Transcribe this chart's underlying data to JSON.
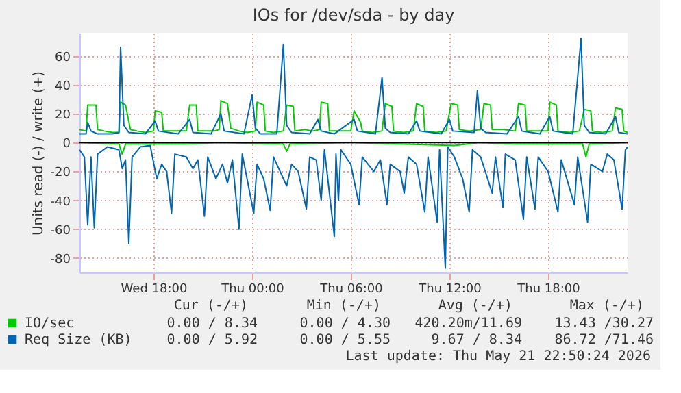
{
  "chart_data": {
    "type": "line",
    "title": "IOs for /dev/sda - by day",
    "ylabel": "Units read (-) / write (+)",
    "xlim": [
      "2026-05-20T13:30",
      "2026-05-21T22:50"
    ],
    "xticks": [
      {
        "value": "2026-05-20T18:00",
        "label": "Wed 18:00"
      },
      {
        "value": "2026-05-21T00:00",
        "label": "Thu 00:00"
      },
      {
        "value": "2026-05-21T06:00",
        "label": "Thu 06:00"
      },
      {
        "value": "2026-05-21T12:00",
        "label": "Thu 12:00"
      },
      {
        "value": "2026-05-21T18:00",
        "label": "Thu 18:00"
      }
    ],
    "ylim": [
      -90,
      76
    ],
    "yticks": [
      -80,
      -60,
      -40,
      -20,
      0,
      20,
      40,
      60
    ],
    "grid": true,
    "legend": "bottom left",
    "line_style": "solid",
    "marker": "none",
    "ref_lines": [
      {
        "axis": "y",
        "value": 0,
        "color": "#000000"
      }
    ],
    "annotations": [
      "Cur (-/+)",
      "Min (-/+)",
      "Avg (-/+)",
      "Max (-/+)",
      "0.00 / 8.34",
      "0.00 / 4.30",
      "420.20m/11.69",
      "13.43 /30.27",
      "0.00 / 5.92",
      "0.00 / 5.55",
      "9.67 / 8.34",
      "86.72 /71.46",
      "Last update: Thu May 21 22:50:24 2026"
    ],
    "series": [
      {
        "name": "IO/sec",
        "color": "#00cc00",
        "x": [
          "2026-05-20T13:30",
          "2026-05-20T13:54",
          "2026-05-20T14:00",
          "2026-05-20T14:30",
          "2026-05-20T14:36",
          "2026-05-20T15:00",
          "2026-05-20T15:30",
          "2026-05-20T15:54",
          "2026-05-20T16:00",
          "2026-05-20T16:18",
          "2026-05-20T16:36",
          "2026-05-20T17:00",
          "2026-05-20T17:30",
          "2026-05-20T18:00",
          "2026-05-20T18:06",
          "2026-05-20T18:30",
          "2026-05-20T18:36",
          "2026-05-20T19:00",
          "2026-05-20T19:30",
          "2026-05-20T20:00",
          "2026-05-20T20:12",
          "2026-05-20T20:36",
          "2026-05-20T20:42",
          "2026-05-20T21:12",
          "2026-05-20T21:42",
          "2026-05-20T22:00",
          "2026-05-20T22:06",
          "2026-05-20T22:30",
          "2026-05-20T22:42",
          "2026-05-20T23:12",
          "2026-05-20T23:42",
          "2026-05-21T00:12",
          "2026-05-21T00:18",
          "2026-05-21T00:42",
          "2026-05-21T00:48",
          "2026-05-21T01:18",
          "2026-05-21T01:54",
          "2026-05-21T02:06",
          "2026-05-21T02:30",
          "2026-05-21T02:36",
          "2026-05-21T03:12",
          "2026-05-21T03:42",
          "2026-05-21T04:06",
          "2026-05-21T04:12",
          "2026-05-21T04:36",
          "2026-05-21T04:42",
          "2026-05-21T05:30",
          "2026-05-21T06:00",
          "2026-05-21T06:12",
          "2026-05-21T06:36",
          "2026-05-21T06:42",
          "2026-05-21T07:18",
          "2026-05-21T07:54",
          "2026-05-21T08:06",
          "2026-05-21T08:30",
          "2026-05-21T08:36",
          "2026-05-21T09:12",
          "2026-05-21T09:48",
          "2026-05-21T10:00",
          "2026-05-21T10:24",
          "2026-05-21T10:30",
          "2026-05-21T11:12",
          "2026-05-21T11:48",
          "2026-05-21T12:06",
          "2026-05-21T12:30",
          "2026-05-21T12:36",
          "2026-05-21T13:12",
          "2026-05-21T13:54",
          "2026-05-21T14:06",
          "2026-05-21T14:30",
          "2026-05-21T14:36",
          "2026-05-21T15:18",
          "2026-05-21T16:00",
          "2026-05-21T16:12",
          "2026-05-21T16:36",
          "2026-05-21T16:42",
          "2026-05-21T17:18",
          "2026-05-21T18:00",
          "2026-05-21T18:06",
          "2026-05-21T18:30",
          "2026-05-21T18:36",
          "2026-05-21T19:18",
          "2026-05-21T19:54",
          "2026-05-21T20:12",
          "2026-05-21T20:36",
          "2026-05-21T20:42",
          "2026-05-21T21:18",
          "2026-05-21T21:54",
          "2026-05-21T22:06",
          "2026-05-21T22:30",
          "2026-05-21T22:36",
          "2026-05-21T22:50"
        ],
        "values": [
          9,
          8,
          26,
          26,
          9,
          8,
          7,
          7,
          28,
          26,
          9,
          8,
          7,
          8,
          22,
          21,
          8,
          8,
          8,
          8,
          26,
          26,
          8,
          8,
          8,
          9,
          29,
          27,
          10,
          8,
          7,
          8,
          28,
          26,
          8,
          7,
          8,
          26,
          25,
          8,
          9,
          8,
          9,
          28,
          27,
          8,
          8,
          8,
          22,
          14,
          8,
          7,
          8,
          27,
          25,
          8,
          7,
          8,
          27,
          25,
          8,
          7,
          8,
          27,
          26,
          9,
          8,
          9,
          27,
          26,
          9,
          9,
          8,
          27,
          26,
          8,
          8,
          8,
          28,
          26,
          8,
          7,
          8,
          23,
          22,
          8,
          7,
          8,
          24,
          23,
          8,
          7
        ]
      },
      {
        "color": "#00cc00",
        "x": [
          "2026-05-20T13:30",
          "2026-05-20T15:54",
          "2026-05-20T16:06",
          "2026-05-20T16:18",
          "2026-05-20T20:00",
          "2026-05-20T22:00",
          "2026-05-21T01:54",
          "2026-05-21T02:06",
          "2026-05-21T02:18",
          "2026-05-21T06:00",
          "2026-05-21T12:18",
          "2026-05-21T13:48",
          "2026-05-21T16:00",
          "2026-05-21T20:06",
          "2026-05-21T20:18",
          "2026-05-21T20:30",
          "2026-05-21T22:50"
        ],
        "values": [
          0,
          -1,
          -8,
          -1,
          -1,
          0,
          -1,
          -6,
          -1,
          0,
          -2,
          0,
          -1,
          -1,
          -10,
          -1,
          0
        ]
      },
      {
        "name": "Req Size (KB)",
        "color": "#0066b3",
        "x": [
          "2026-05-20T13:30",
          "2026-05-20T13:54",
          "2026-05-20T14:00",
          "2026-05-20T14:12",
          "2026-05-20T14:36",
          "2026-05-20T15:30",
          "2026-05-20T15:54",
          "2026-05-20T16:00",
          "2026-05-20T16:12",
          "2026-05-20T16:30",
          "2026-05-20T17:30",
          "2026-05-20T18:06",
          "2026-05-20T18:18",
          "2026-05-20T19:30",
          "2026-05-20T20:12",
          "2026-05-20T20:24",
          "2026-05-20T21:30",
          "2026-05-20T22:06",
          "2026-05-20T22:18",
          "2026-05-20T23:30",
          "2026-05-21T00:00",
          "2026-05-21T00:12",
          "2026-05-21T00:30",
          "2026-05-21T01:30",
          "2026-05-21T01:54",
          "2026-05-21T02:06",
          "2026-05-21T02:24",
          "2026-05-21T03:30",
          "2026-05-21T04:00",
          "2026-05-21T04:12",
          "2026-05-21T05:00",
          "2026-05-21T06:12",
          "2026-05-21T06:24",
          "2026-05-21T07:30",
          "2026-05-21T07:54",
          "2026-05-21T08:06",
          "2026-05-21T08:24",
          "2026-05-21T09:30",
          "2026-05-21T10:00",
          "2026-05-21T10:12",
          "2026-05-21T11:30",
          "2026-05-21T12:00",
          "2026-05-21T12:12",
          "2026-05-21T13:30",
          "2026-05-21T13:42",
          "2026-05-21T13:54",
          "2026-05-21T14:12",
          "2026-05-21T15:30",
          "2026-05-21T16:12",
          "2026-05-21T16:24",
          "2026-05-21T17:30",
          "2026-05-21T18:06",
          "2026-05-21T18:18",
          "2026-05-21T19:30",
          "2026-05-21T20:00",
          "2026-05-21T20:12",
          "2026-05-21T20:30",
          "2026-05-21T21:30",
          "2026-05-21T22:06",
          "2026-05-21T22:18",
          "2026-05-21T22:50"
        ],
        "values": [
          6,
          6,
          14,
          8,
          6,
          6,
          7,
          66,
          12,
          7,
          6,
          15,
          8,
          6,
          16,
          7,
          6,
          20,
          8,
          6,
          33,
          10,
          6,
          6,
          68,
          12,
          7,
          6,
          16,
          8,
          6,
          16,
          8,
          6,
          45,
          10,
          7,
          6,
          15,
          8,
          6,
          16,
          8,
          7,
          36,
          10,
          7,
          6,
          18,
          8,
          6,
          18,
          8,
          6,
          72,
          12,
          7,
          6,
          18,
          7,
          6
        ]
      },
      {
        "color": "#0066b3",
        "x": [
          "2026-05-20T13:30",
          "2026-05-20T13:48",
          "2026-05-20T14:00",
          "2026-05-20T14:12",
          "2026-05-20T14:24",
          "2026-05-20T14:36",
          "2026-05-20T15:12",
          "2026-05-20T15:54",
          "2026-05-20T16:06",
          "2026-05-20T16:18",
          "2026-05-20T16:30",
          "2026-05-20T16:42",
          "2026-05-20T17:12",
          "2026-05-20T17:48",
          "2026-05-20T18:12",
          "2026-05-20T18:30",
          "2026-05-20T18:48",
          "2026-05-20T19:06",
          "2026-05-20T19:18",
          "2026-05-20T20:00",
          "2026-05-20T20:24",
          "2026-05-20T20:42",
          "2026-05-20T21:06",
          "2026-05-20T21:18",
          "2026-05-20T21:48",
          "2026-05-20T22:12",
          "2026-05-20T22:30",
          "2026-05-20T22:48",
          "2026-05-20T23:12",
          "2026-05-20T23:24",
          "2026-05-21T00:06",
          "2026-05-21T00:18",
          "2026-05-21T00:42",
          "2026-05-21T01:06",
          "2026-05-21T01:18",
          "2026-05-21T01:42",
          "2026-05-21T02:06",
          "2026-05-21T02:24",
          "2026-05-21T02:48",
          "2026-05-21T03:18",
          "2026-05-21T03:30",
          "2026-05-21T03:54",
          "2026-05-21T04:12",
          "2026-05-21T04:24",
          "2026-05-21T05:00",
          "2026-05-21T05:06",
          "2026-05-21T05:15",
          "2026-05-21T05:24",
          "2026-05-21T06:00",
          "2026-05-21T06:30",
          "2026-05-21T06:42",
          "2026-05-21T07:24",
          "2026-05-21T07:48",
          "2026-05-21T08:12",
          "2026-05-21T08:24",
          "2026-05-21T09:00",
          "2026-05-21T09:15",
          "2026-05-21T09:30",
          "2026-05-21T10:00",
          "2026-05-21T10:30",
          "2026-05-21T10:42",
          "2026-05-21T11:15",
          "2026-05-21T11:24",
          "2026-05-21T11:45",
          "2026-05-21T11:54",
          "2026-05-21T12:18",
          "2026-05-21T12:48",
          "2026-05-21T13:12",
          "2026-05-21T13:24",
          "2026-05-21T13:54",
          "2026-05-21T14:36",
          "2026-05-21T14:48",
          "2026-05-21T15:15",
          "2026-05-21T15:24",
          "2026-05-21T16:00",
          "2026-05-21T16:30",
          "2026-05-21T16:42",
          "2026-05-21T17:12",
          "2026-05-21T17:24",
          "2026-05-21T18:00",
          "2026-05-21T18:36",
          "2026-05-21T18:48",
          "2026-05-21T19:36",
          "2026-05-21T19:48",
          "2026-05-21T20:24",
          "2026-05-21T20:36",
          "2026-05-21T21:18",
          "2026-05-21T21:36",
          "2026-05-21T22:00",
          "2026-05-21T22:30",
          "2026-05-21T22:42",
          "2026-05-21T22:50"
        ],
        "values": [
          -5,
          -10,
          -57,
          -10,
          -59,
          -8,
          -3,
          -5,
          -18,
          -12,
          -70,
          -10,
          -3,
          -2,
          -25,
          -15,
          -20,
          -49,
          -8,
          -10,
          -18,
          -12,
          -51,
          -10,
          -25,
          -15,
          -28,
          -12,
          -60,
          -8,
          -49,
          -15,
          -25,
          -47,
          -10,
          -20,
          -30,
          -15,
          -20,
          -46,
          -10,
          -12,
          -40,
          -5,
          -65,
          -8,
          -40,
          -5,
          -15,
          -43,
          -10,
          -20,
          -12,
          -43,
          -15,
          -20,
          -35,
          -10,
          -15,
          -48,
          -10,
          -55,
          -5,
          -87,
          -3,
          -10,
          -25,
          -48,
          -5,
          -10,
          -35,
          -10,
          -45,
          -8,
          -12,
          -53,
          -10,
          -46,
          -10,
          -20,
          -48,
          -12,
          -43,
          -10,
          -55,
          -15,
          -20,
          -8,
          -12,
          -46,
          -5,
          -3
        ]
      }
    ]
  }
}
